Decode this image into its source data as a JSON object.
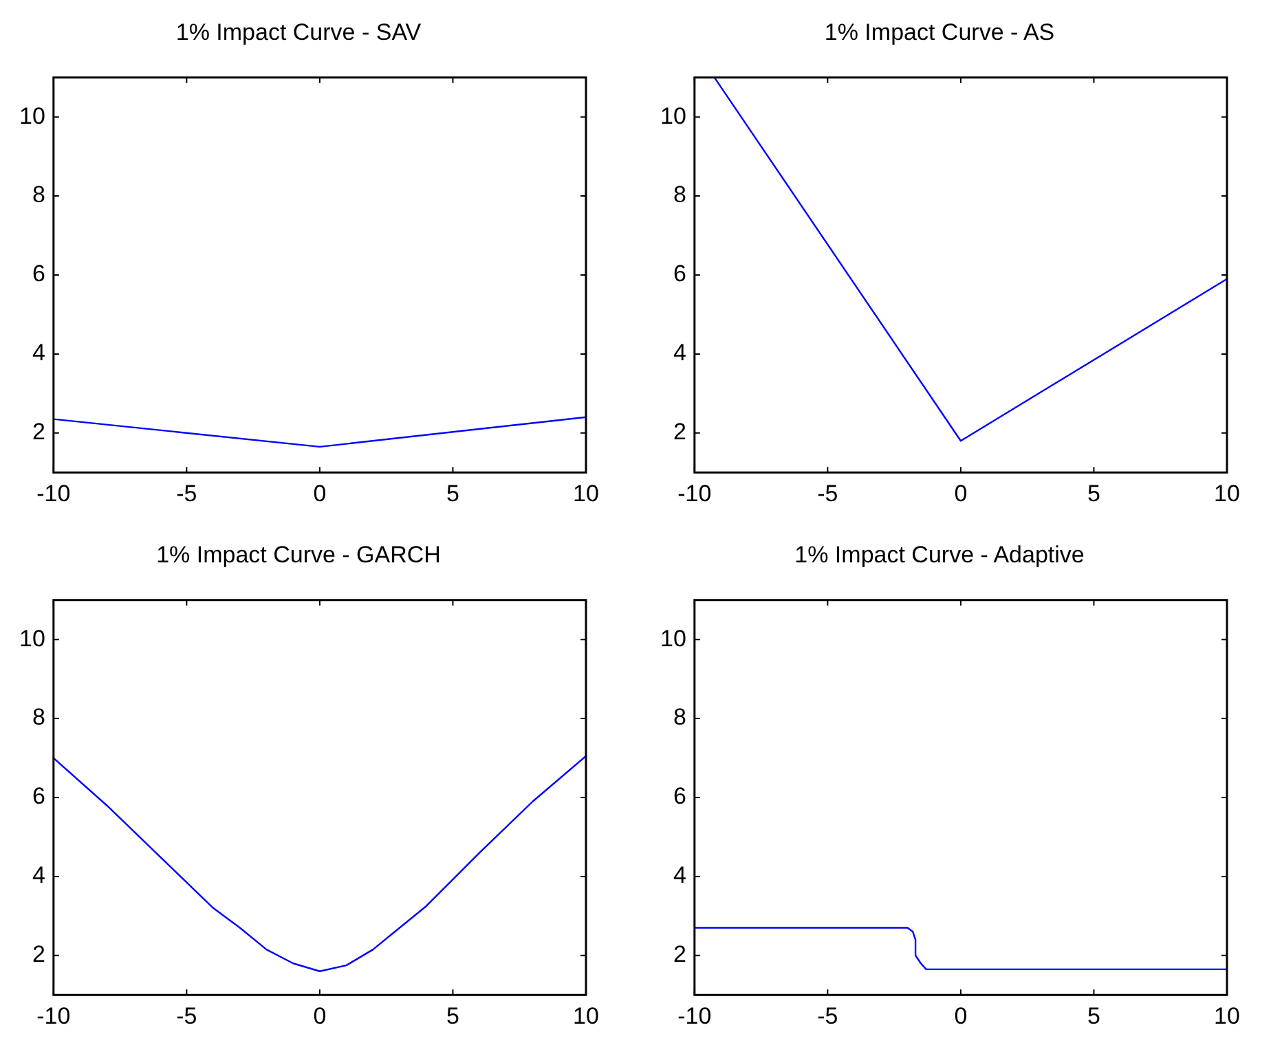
{
  "chart_data": [
    {
      "type": "line",
      "title": "1% Impact Curve - SAV",
      "marker": "none",
      "grid": false,
      "xlim": [
        -10,
        10
      ],
      "xticks": [
        -10,
        -5,
        0,
        5,
        10
      ],
      "ylim": [
        1,
        11
      ],
      "yticks": [
        2,
        4,
        6,
        8,
        10
      ],
      "series": [
        {
          "color": "#0000ff",
          "x": [
            -10,
            0,
            10
          ],
          "values": [
            2.35,
            1.65,
            2.4
          ]
        }
      ]
    },
    {
      "type": "line",
      "title": "1% Impact Curve - AS",
      "marker": "none",
      "grid": false,
      "xlim": [
        -10,
        10
      ],
      "xticks": [
        -10,
        -5,
        0,
        5,
        10
      ],
      "ylim": [
        1,
        11
      ],
      "yticks": [
        2,
        4,
        6,
        8,
        10
      ],
      "series": [
        {
          "color": "#0000ff",
          "x": [
            -9.25,
            0,
            10
          ],
          "values": [
            11,
            1.8,
            5.9
          ]
        }
      ]
    },
    {
      "type": "line",
      "title": "1% Impact Curve - GARCH",
      "marker": "none",
      "grid": false,
      "xlim": [
        -10,
        10
      ],
      "xticks": [
        -10,
        -5,
        0,
        5,
        10
      ],
      "ylim": [
        1,
        11
      ],
      "yticks": [
        2,
        4,
        6,
        8,
        10
      ],
      "series": [
        {
          "color": "#0000ff",
          "x": [
            -10,
            -8,
            -6,
            -4,
            -3,
            -2,
            -1,
            0,
            1,
            2,
            3,
            4,
            6,
            8,
            10
          ],
          "values": [
            7.0,
            5.8,
            4.5,
            3.2,
            2.7,
            2.15,
            1.8,
            1.6,
            1.75,
            2.15,
            2.7,
            3.25,
            4.6,
            5.9,
            7.05
          ]
        }
      ]
    },
    {
      "type": "line",
      "title": "1% Impact Curve - Adaptive",
      "marker": "none",
      "grid": false,
      "xlim": [
        -10,
        10
      ],
      "xticks": [
        -10,
        -5,
        0,
        5,
        10
      ],
      "ylim": [
        1,
        11
      ],
      "yticks": [
        2,
        4,
        6,
        8,
        10
      ],
      "series": [
        {
          "color": "#0000ff",
          "x": [
            -10,
            -2,
            -1.8,
            -1.7,
            -1.7,
            -1.5,
            -1.3,
            10
          ],
          "values": [
            2.7,
            2.7,
            2.6,
            2.4,
            2.0,
            1.8,
            1.65,
            1.65
          ]
        }
      ]
    }
  ]
}
